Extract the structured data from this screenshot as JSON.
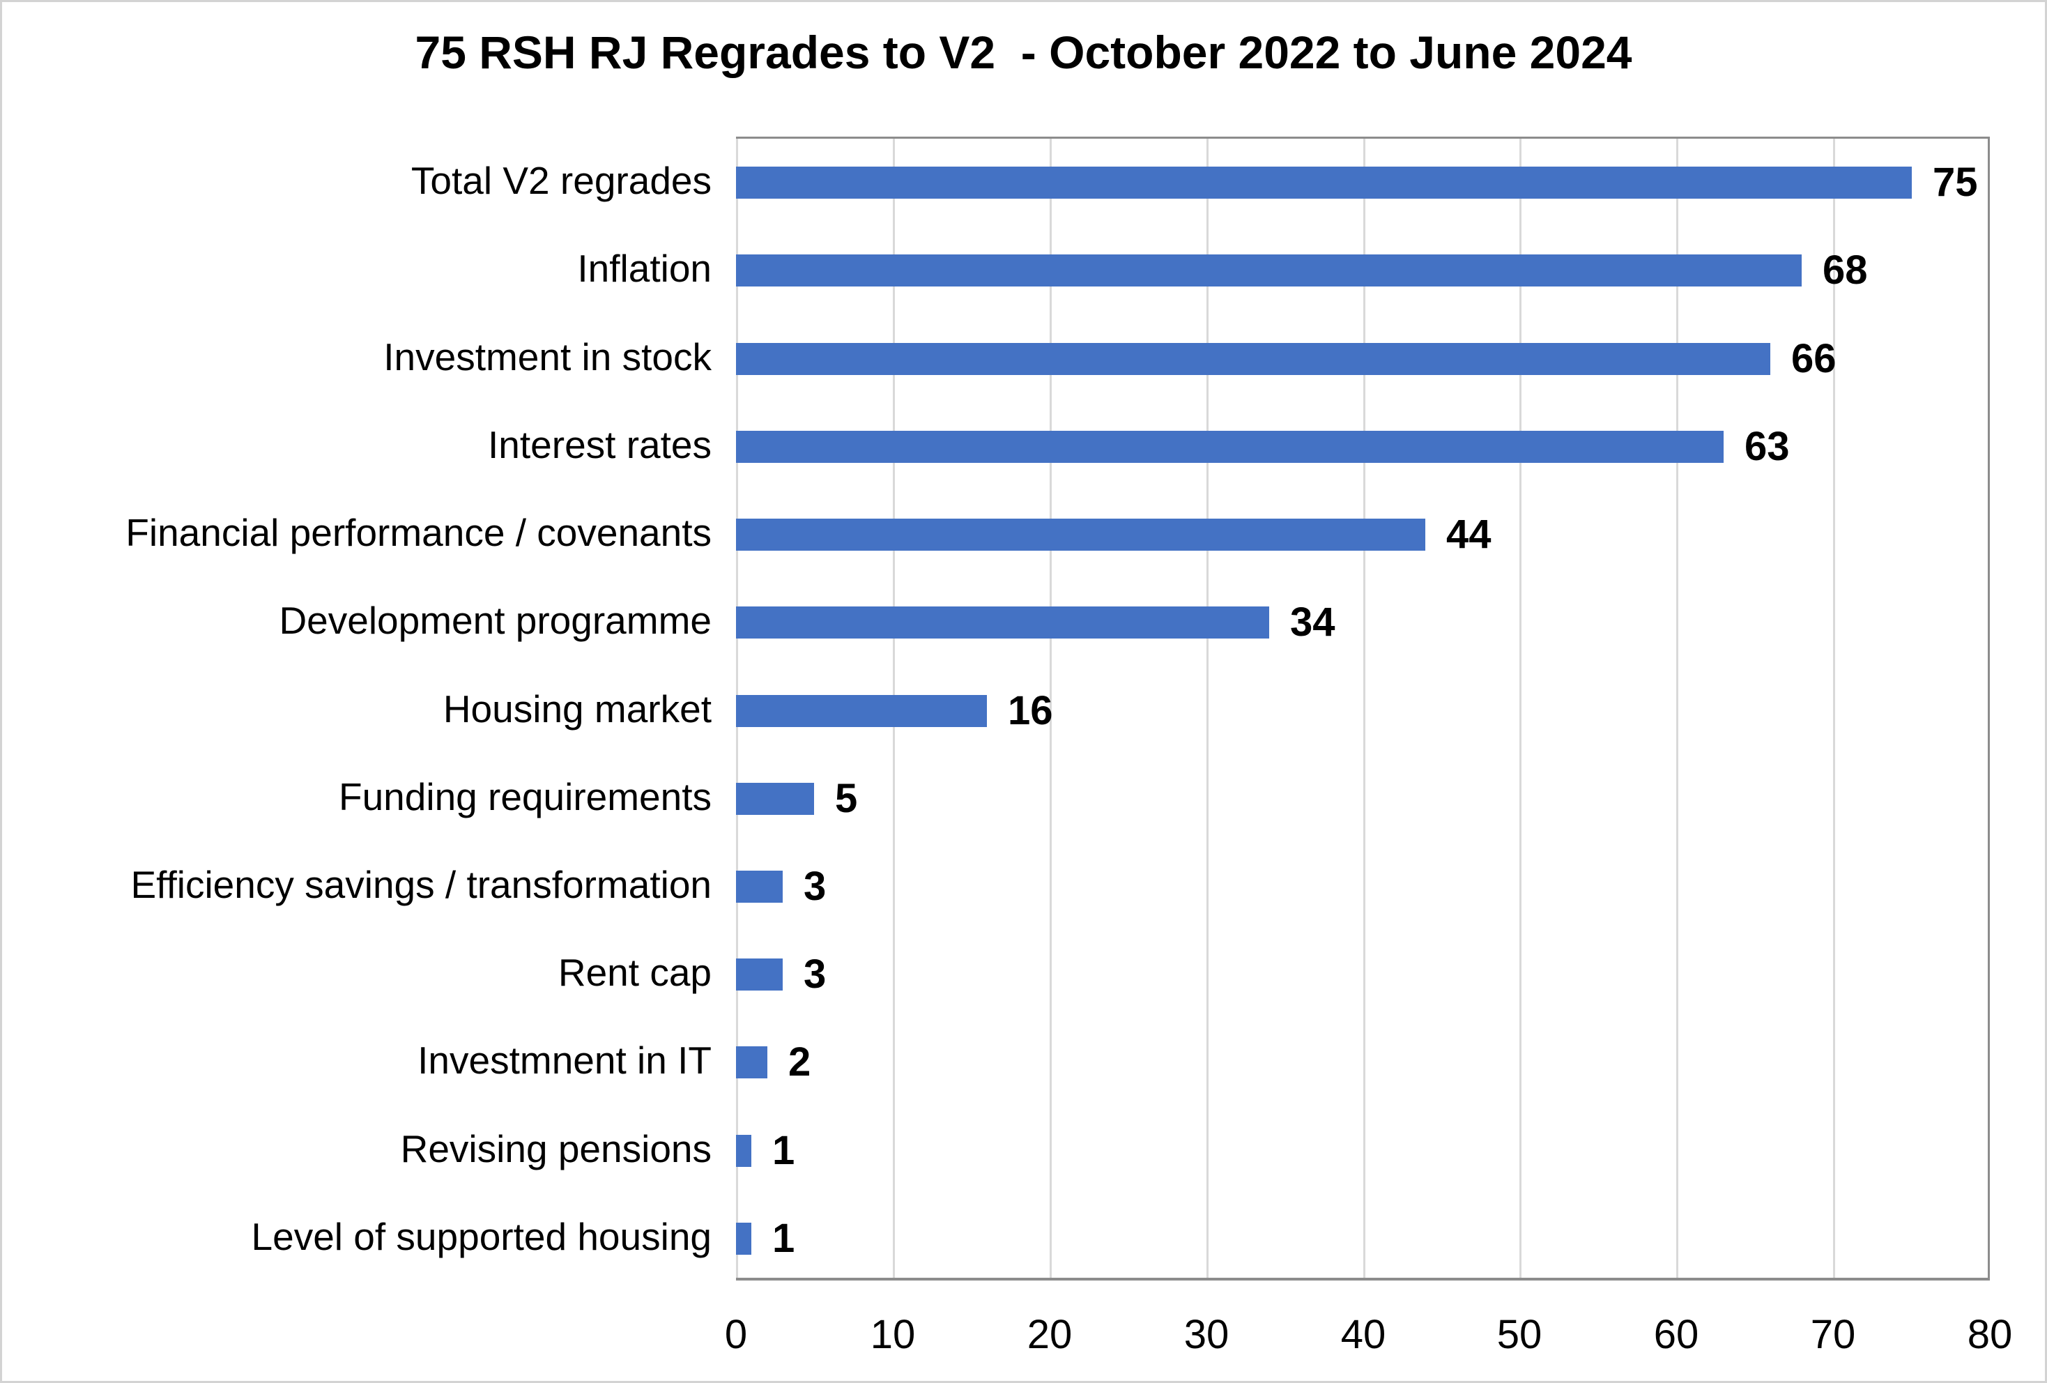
{
  "title": "75 RSH RJ Regrades to V2  - October 2022 to June 2024",
  "chart_data": {
    "type": "bar",
    "orientation": "horizontal",
    "title": "75 RSH RJ Regrades to V2  - October 2022 to June 2024",
    "categories": [
      "Total V2 regrades",
      "Inflation",
      "Investment in stock",
      "Interest rates",
      "Financial performance / covenants",
      "Development programme",
      "Housing market",
      "Funding requirements",
      "Efficiency savings / transformation",
      "Rent cap",
      "Investmnent in IT",
      "Revising pensions",
      "Level of supported housing"
    ],
    "values": [
      75,
      68,
      66,
      63,
      44,
      34,
      16,
      5,
      3,
      3,
      2,
      1,
      1
    ],
    "data_labels": [
      75,
      68,
      66,
      63,
      44,
      34,
      16,
      5,
      3,
      3,
      2,
      1,
      1
    ],
    "xlabel": "",
    "ylabel": "",
    "xlim": [
      0,
      80
    ],
    "xticks": [
      0,
      10,
      20,
      30,
      40,
      50,
      60,
      70,
      80
    ],
    "grid": "vertical-gridlines-on",
    "legend": "none",
    "colors": {
      "bar": "#4472c4",
      "gridline": "#d9d9d9",
      "plot_border": "#8c8c8c",
      "figure_border": "#d3d3d3",
      "text": "#000000"
    }
  }
}
